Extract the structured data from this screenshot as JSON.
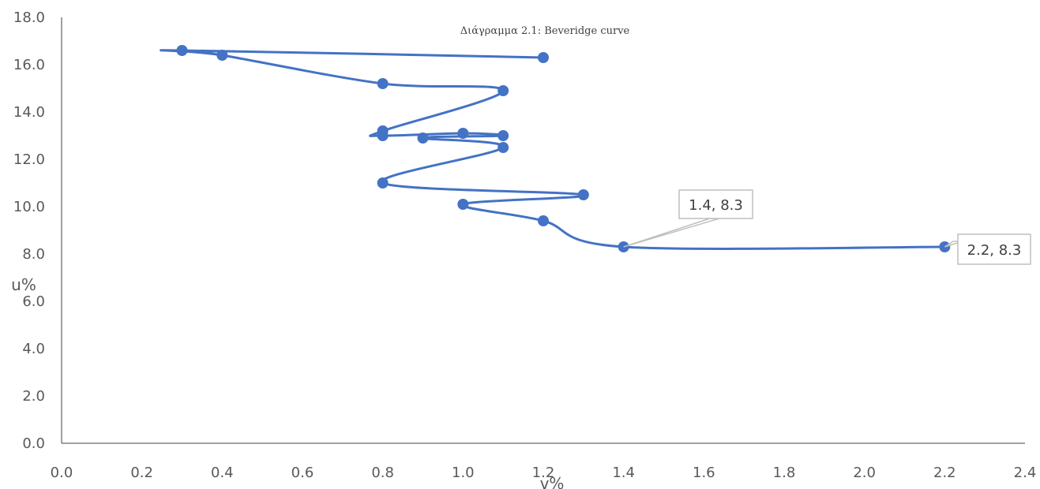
{
  "chart_data": {
    "type": "scatter",
    "title": "Διάγραμμα 2.1: Beveridge curve",
    "xlabel": "v%",
    "ylabel": "u%",
    "xlim": [
      0,
      2.4
    ],
    "ylim": [
      0,
      18
    ],
    "x_ticks": [
      "0.0",
      "0.2",
      "0.4",
      "0.6",
      "0.8",
      "1.0",
      "1.2",
      "1.4",
      "1.6",
      "1.8",
      "2.0",
      "2.2",
      "2.4"
    ],
    "y_ticks": [
      "0.0",
      "2.0",
      "4.0",
      "6.0",
      "8.0",
      "10.0",
      "12.0",
      "14.0",
      "16.0",
      "18.0"
    ],
    "grid": false,
    "smooth_line": true,
    "series": [
      {
        "color": "#4472C4",
        "points": [
          {
            "x": 2.2,
            "y": 8.3
          },
          {
            "x": 1.4,
            "y": 8.3
          },
          {
            "x": 1.2,
            "y": 9.4
          },
          {
            "x": 1.0,
            "y": 10.1
          },
          {
            "x": 1.3,
            "y": 10.5
          },
          {
            "x": 0.8,
            "y": 11.0
          },
          {
            "x": 1.1,
            "y": 12.5
          },
          {
            "x": 0.9,
            "y": 12.9
          },
          {
            "x": 1.1,
            "y": 13.0
          },
          {
            "x": 1.0,
            "y": 13.1
          },
          {
            "x": 0.8,
            "y": 13.0
          },
          {
            "x": 0.8,
            "y": 13.2
          },
          {
            "x": 1.1,
            "y": 14.9
          },
          {
            "x": 0.8,
            "y": 15.2
          },
          {
            "x": 0.4,
            "y": 16.4
          },
          {
            "x": 0.3,
            "y": 16.6
          },
          {
            "x": 1.2,
            "y": 16.3
          }
        ]
      }
    ],
    "annotations": [
      {
        "text": "1.4, 8.3",
        "x": 1.4,
        "y": 8.3
      },
      {
        "text": "2.2, 8.3",
        "x": 2.2,
        "y": 8.3
      }
    ]
  }
}
